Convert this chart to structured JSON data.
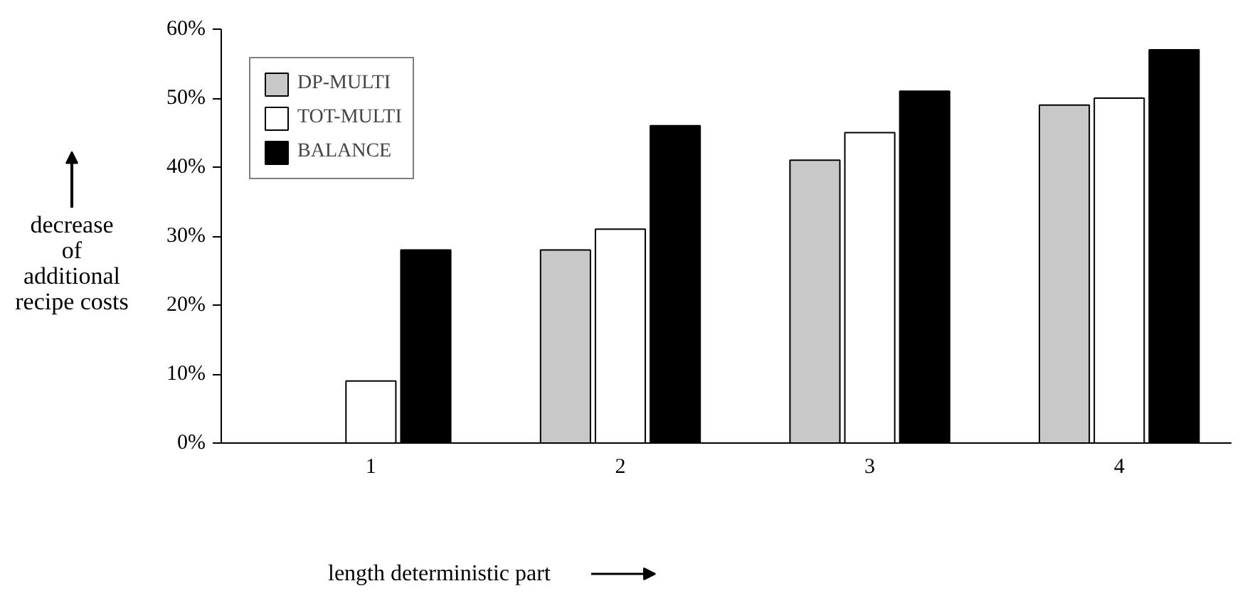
{
  "chart_data": {
    "type": "bar",
    "categories": [
      "1",
      "2",
      "3",
      "4"
    ],
    "xlabel": "length deterministic part",
    "ylabel": "decrease of additional recipe costs",
    "series": [
      {
        "name": "DP-MULTI",
        "color": "#c8c8c8",
        "values": [
          0,
          28,
          41,
          49
        ]
      },
      {
        "name": "TOT-MULTI",
        "color": "#ffffff",
        "values": [
          9,
          31,
          45,
          50
        ]
      },
      {
        "name": "BALANCE",
        "color": "#000000",
        "values": [
          28,
          46,
          51,
          57
        ]
      }
    ],
    "ylim": [
      0,
      60
    ],
    "yticks": [
      {
        "value": 0,
        "label": "0%"
      },
      {
        "value": 10,
        "label": "10%"
      },
      {
        "value": 20,
        "label": "20%"
      },
      {
        "value": 30,
        "label": "30%"
      },
      {
        "value": 40,
        "label": "40%"
      },
      {
        "value": 50,
        "label": "50%"
      },
      {
        "value": 60,
        "label": "60%"
      }
    ],
    "grid": false,
    "legend": "top left"
  }
}
